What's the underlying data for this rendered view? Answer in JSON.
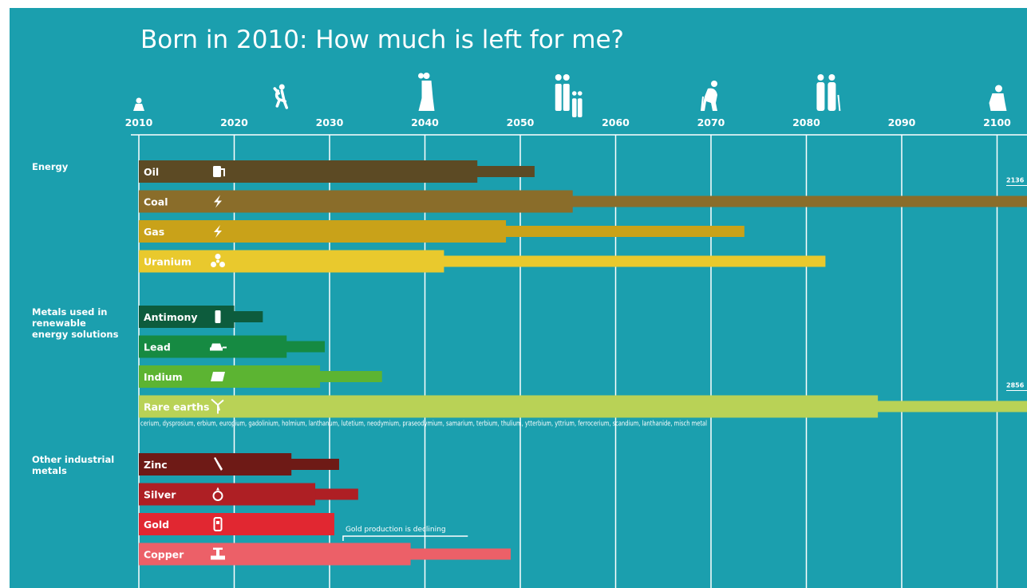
{
  "chart_data": {
    "type": "bar",
    "title": "Born in 2010: How much is left for me?",
    "x_axis": {
      "range": [
        2010,
        2100
      ],
      "ticks": [
        "2010",
        "2020",
        "2030",
        "2040",
        "2050",
        "2060",
        "2070",
        "2080",
        "2090",
        "2100"
      ]
    },
    "life_stage_icons": [
      {
        "year": 2010,
        "icon": "baby-icon"
      },
      {
        "year": 2025,
        "icon": "child-jumping-icon"
      },
      {
        "year": 2040,
        "icon": "couple-wedding-icon"
      },
      {
        "year": 2055,
        "icon": "family-icon"
      },
      {
        "year": 2070,
        "icon": "elderly-walking-icon"
      },
      {
        "year": 2082,
        "icon": "elderly-couple-icon"
      },
      {
        "year": 2100,
        "icon": "elderly-seated-icon"
      }
    ],
    "groups": [
      {
        "label": [
          "Energy"
        ],
        "resources": [
          {
            "name": "Oil",
            "icon": "fuel-pump-icon",
            "color": "#5c4a24",
            "thick_end": 2045.5,
            "thin_end": 2051.5
          },
          {
            "name": "Coal",
            "icon": "lightning-icon",
            "color": "#8a6d2a",
            "thick_end": 2055.5,
            "thin_end": 2136,
            "overflow_label": "2136"
          },
          {
            "name": "Gas",
            "icon": "lightning-icon",
            "color": "#c9a219",
            "thick_end": 2048.5,
            "thin_end": 2073.5
          },
          {
            "name": "Uranium",
            "icon": "radiation-icon",
            "color": "#e9c92d",
            "thick_end": 2042,
            "thin_end": 2082
          }
        ]
      },
      {
        "label": [
          "Metals used in",
          "renewable",
          "energy solutions"
        ],
        "resources": [
          {
            "name": "Antimony",
            "icon": "battery-icon",
            "color": "#0d5c3d",
            "thick_end": 2020,
            "thin_end": 2023
          },
          {
            "name": "Lead",
            "icon": "car-icon",
            "color": "#168a42",
            "thick_end": 2025.5,
            "thin_end": 2029.5
          },
          {
            "name": "Indium",
            "icon": "solar-panel-icon",
            "color": "#5cb432",
            "thick_end": 2029,
            "thin_end": 2035.5
          },
          {
            "name": "Rare earths",
            "icon": "wind-turbine-icon",
            "color": "#b9d256",
            "thick_end": 2087.5,
            "thin_end": 2856,
            "overflow_label": "2856"
          }
        ],
        "footnote": "cerium, dysprosium, erbium, europium, gadolinium, holmium, lanthanum, lutetium, neodymium, praseodymium, samarium, terbium, thulium, ytterbium, yttrium, ferrocerium, scandium, lanthanide, misch metal"
      },
      {
        "label": [
          "Other industrial",
          "metals"
        ],
        "resources": [
          {
            "name": "Zinc",
            "icon": "screwdriver-icon",
            "color": "#6e1a16",
            "thick_end": 2026,
            "thin_end": 2031
          },
          {
            "name": "Silver",
            "icon": "ring-icon",
            "color": "#ae1f24",
            "thick_end": 2028.5,
            "thin_end": 2033
          },
          {
            "name": "Gold",
            "icon": "phone-icon",
            "color": "#e12731",
            "thick_end": 2030.5,
            "thin_end": 2030.5
          },
          {
            "name": "Copper",
            "icon": "faucet-icon",
            "color": "#ec6068",
            "thick_end": 2038.5,
            "thin_end": 2049
          }
        ]
      }
    ],
    "annotations": [
      {
        "text": "Gold production is declining",
        "year_start": 2031,
        "year_end": 2044.5
      }
    ]
  }
}
